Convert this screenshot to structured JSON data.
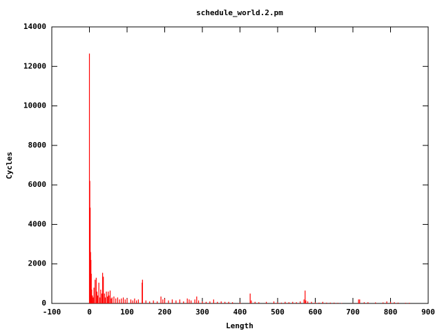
{
  "chart_data": {
    "type": "impulses",
    "title": "schedule_world.2.pm",
    "x_label": "Length",
    "y_label": "Cycles",
    "color": "#ff0000",
    "xlim": [
      -100,
      900
    ],
    "xticks": [
      -100,
      0,
      100,
      200,
      300,
      400,
      500,
      600,
      700,
      800,
      900
    ],
    "ylim": [
      0,
      14000
    ],
    "yticks": [
      0,
      2000,
      4000,
      6000,
      8000,
      10000,
      12000,
      14000
    ],
    "x": [
      0,
      1,
      2,
      3,
      4,
      5,
      6,
      8,
      10,
      12,
      15,
      18,
      20,
      22,
      25,
      28,
      30,
      33,
      35,
      37,
      40,
      42,
      45,
      48,
      50,
      52,
      55,
      58,
      60,
      65,
      70,
      75,
      80,
      85,
      90,
      95,
      100,
      110,
      115,
      120,
      125,
      130,
      140,
      141,
      150,
      160,
      170,
      180,
      190,
      195,
      200,
      210,
      220,
      230,
      240,
      250,
      260,
      265,
      270,
      280,
      285,
      290,
      300,
      310,
      320,
      330,
      340,
      350,
      360,
      370,
      380,
      400,
      427,
      430,
      440,
      450,
      470,
      490,
      500,
      510,
      520,
      530,
      540,
      550,
      560,
      570,
      573,
      575,
      580,
      590,
      600,
      610,
      620,
      630,
      640,
      650,
      660,
      670,
      700,
      715,
      718,
      730,
      740,
      760,
      780,
      790,
      800,
      810,
      820,
      840,
      850
    ],
    "values": [
      12650,
      6200,
      4850,
      2600,
      2200,
      1500,
      700,
      400,
      300,
      800,
      1200,
      1300,
      600,
      400,
      1050,
      300,
      700,
      500,
      1550,
      1350,
      500,
      300,
      600,
      350,
      600,
      400,
      650,
      250,
      300,
      350,
      250,
      300,
      200,
      250,
      300,
      200,
      250,
      200,
      150,
      250,
      150,
      200,
      1050,
      1200,
      150,
      100,
      150,
      100,
      350,
      200,
      250,
      150,
      200,
      150,
      200,
      100,
      250,
      200,
      150,
      200,
      350,
      150,
      100,
      80,
      100,
      200,
      80,
      100,
      80,
      80,
      60,
      50,
      500,
      150,
      80,
      60,
      80,
      100,
      60,
      40,
      80,
      60,
      80,
      60,
      100,
      200,
      650,
      150,
      100,
      80,
      60,
      40,
      80,
      40,
      40,
      40,
      30,
      20,
      20,
      200,
      200,
      60,
      60,
      50,
      50,
      100,
      80,
      60,
      40,
      30,
      30
    ]
  }
}
